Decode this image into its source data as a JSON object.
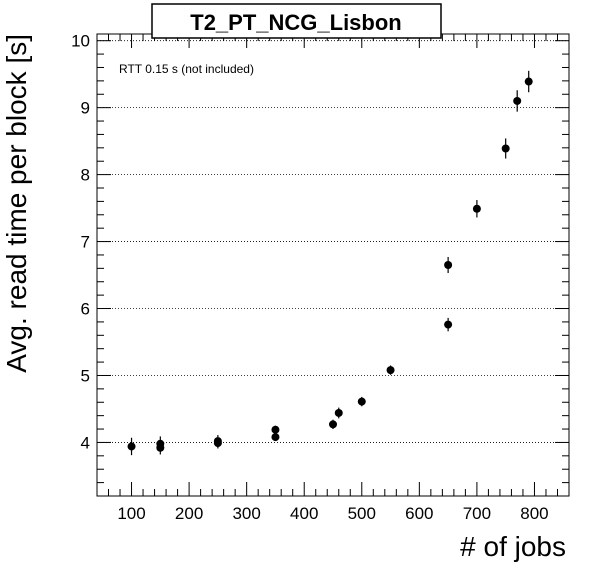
{
  "chart_data": {
    "type": "scatter",
    "title": "T2_PT_NCG_Lisbon",
    "xlabel": "# of jobs",
    "ylabel": "Avg. read time per block [s]",
    "annotation": "RTT 0.15 s (not included)",
    "xlim": [
      40,
      860
    ],
    "ylim": [
      3.2,
      10.1
    ],
    "x_ticks": [
      100,
      200,
      300,
      400,
      500,
      600,
      700,
      800
    ],
    "y_ticks": [
      4,
      5,
      6,
      7,
      8,
      9,
      10
    ],
    "grid": "horizontal-dotted",
    "series": [
      {
        "x": [
          100,
          150,
          150,
          250,
          250,
          350,
          350,
          450,
          460,
          500,
          550,
          650,
          650,
          700,
          750,
          770,
          790
        ],
        "y": [
          3.94,
          3.98,
          3.92,
          4.02,
          3.99,
          4.19,
          4.08,
          4.27,
          4.44,
          4.61,
          5.08,
          5.76,
          6.65,
          7.49,
          8.39,
          9.1,
          9.39
        ],
        "yerr": [
          0.13,
          0.11,
          0.1,
          0.09,
          0.08,
          0.06,
          0.06,
          0.07,
          0.08,
          0.07,
          0.07,
          0.1,
          0.12,
          0.13,
          0.15,
          0.16,
          0.16
        ]
      }
    ]
  }
}
